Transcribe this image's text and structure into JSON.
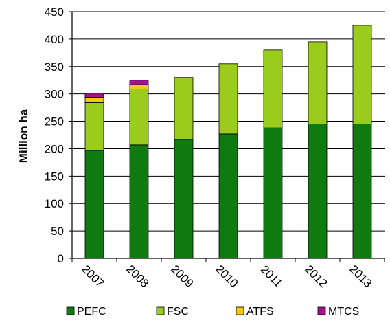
{
  "chart_data": {
    "type": "bar",
    "stacked": true,
    "title": "",
    "xlabel": "",
    "ylabel": "Million ha",
    "ylim": [
      0,
      450
    ],
    "yticks": [
      0,
      50,
      100,
      150,
      200,
      250,
      300,
      350,
      400,
      450
    ],
    "categories": [
      "2007",
      "2008",
      "2009",
      "2010",
      "2011",
      "2012",
      "2013"
    ],
    "grid": "horizontal",
    "legend_position": "bottom",
    "series": [
      {
        "name": "PEFC",
        "color": "#0f7a0f",
        "values": [
          197,
          207,
          217,
          227,
          238,
          245,
          245
        ]
      },
      {
        "name": "FSC",
        "color": "#9acb1d",
        "values": [
          87,
          102,
          113,
          128,
          142,
          150,
          180
        ]
      },
      {
        "name": "ATFS",
        "color": "#f2c811",
        "values": [
          10,
          8,
          0,
          0,
          0,
          0,
          0
        ]
      },
      {
        "name": "MTCS",
        "color": "#a1158a",
        "values": [
          7,
          8,
          0,
          0,
          0,
          0,
          0
        ]
      }
    ]
  }
}
